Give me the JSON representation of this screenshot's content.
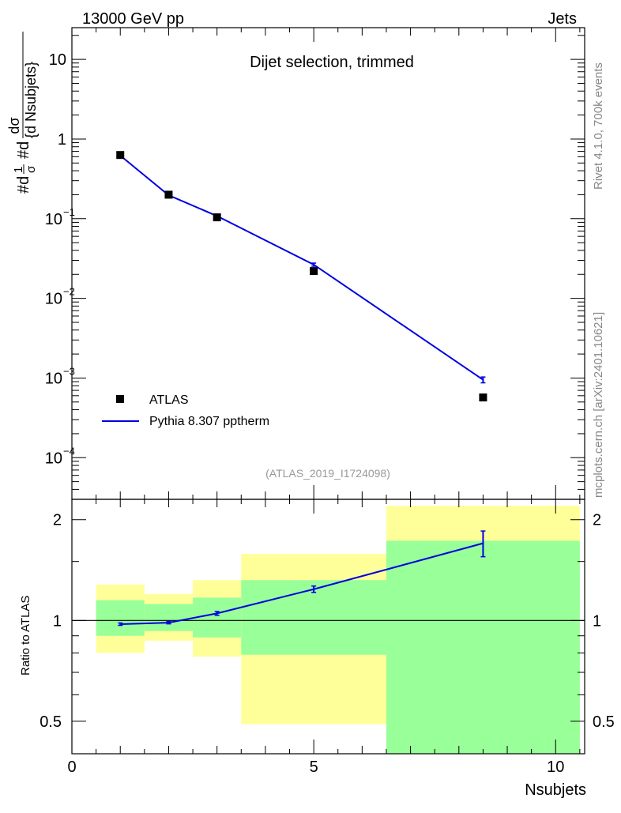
{
  "header": {
    "energy": "13000 GeV pp",
    "category": "Jets"
  },
  "side_labels": {
    "rivet": "Rivet 4.1.0,  700k events",
    "source": "mcplots.cern.ch [arXiv:2401.10621]"
  },
  "colors": {
    "mc": "#0000e0",
    "data": "#000000",
    "band_inner": "#99ff99",
    "band_outer": "#ffff99",
    "watermark": "#999999",
    "side_text": "#888888"
  },
  "chart_data": [
    {
      "type": "scatter",
      "panel": "main",
      "title": "Dijet selection, trimmed",
      "watermark": "(ATLAS_2019_I1724098)",
      "ylabel_parts": [
        "#d",
        "1",
        "σ",
        "#d",
        "dσ",
        "{d Nsubjets}"
      ],
      "yscale": "log",
      "ylim": [
        3e-05,
        25
      ],
      "xlim": [
        0,
        10.6
      ],
      "y_ticks": [
        {
          "value": 0.0001,
          "base": "10",
          "exp": "−4"
        },
        {
          "value": 0.001,
          "base": "10",
          "exp": "−3"
        },
        {
          "value": 0.01,
          "base": "10",
          "exp": "−2"
        },
        {
          "value": 0.1,
          "base": "10",
          "exp": "−1"
        },
        {
          "value": 1,
          "base": "1",
          "exp": ""
        },
        {
          "value": 10,
          "base": "10",
          "exp": ""
        }
      ],
      "legend": [
        {
          "label": "ATLAS",
          "kind": "marker"
        },
        {
          "label": "Pythia 8.307 pptherm",
          "kind": "line"
        }
      ],
      "series": [
        {
          "name": "ATLAS",
          "x": [
            1,
            2,
            3,
            5,
            8.5
          ],
          "y": [
            0.63,
            0.2,
            0.104,
            0.022,
            0.00057
          ]
        },
        {
          "name": "Pythia 8.307 pptherm",
          "x": [
            1,
            2,
            3,
            5,
            8.5
          ],
          "y": [
            0.62,
            0.197,
            0.108,
            0.0265,
            0.00095
          ],
          "yerr": [
            0.005,
            0.002,
            0.0015,
            0.0012,
            8e-05
          ]
        }
      ]
    },
    {
      "type": "line",
      "panel": "ratio",
      "ylabel": "Ratio to ATLAS",
      "xlabel": "Nsubjets",
      "yscale": "log",
      "ylim": [
        0.4,
        2.3
      ],
      "xlim": [
        0,
        10.6
      ],
      "x_ticks": [
        {
          "value": 0,
          "label": "0"
        },
        {
          "value": 5,
          "label": "5"
        },
        {
          "value": 10,
          "label": "10"
        }
      ],
      "y_ticks": [
        {
          "value": 0.5,
          "label": "0.5"
        },
        {
          "value": 1,
          "label": "1"
        },
        {
          "value": 2,
          "label": "2"
        }
      ],
      "bands": [
        {
          "x0": 0.5,
          "x1": 1.5,
          "outer": [
            0.8,
            1.28
          ],
          "inner": [
            0.9,
            1.15
          ]
        },
        {
          "x0": 1.5,
          "x1": 2.5,
          "outer": [
            0.87,
            1.2
          ],
          "inner": [
            0.93,
            1.12
          ]
        },
        {
          "x0": 2.5,
          "x1": 3.5,
          "outer": [
            0.78,
            1.32
          ],
          "inner": [
            0.89,
            1.17
          ]
        },
        {
          "x0": 3.5,
          "x1": 6.5,
          "outer": [
            0.49,
            1.58
          ],
          "inner": [
            0.79,
            1.32
          ]
        },
        {
          "x0": 6.5,
          "x1": 10.5,
          "outer": [
            0.35,
            2.2
          ],
          "inner": [
            0.35,
            1.73
          ]
        }
      ],
      "series": [
        {
          "name": "Pythia 8.307 pptherm / ATLAS",
          "x": [
            1,
            2,
            3,
            5,
            8.5
          ],
          "y": [
            0.975,
            0.985,
            1.05,
            1.24,
            1.7
          ],
          "yerr": [
            0.008,
            0.008,
            0.014,
            0.027,
            0.15
          ]
        }
      ]
    }
  ]
}
